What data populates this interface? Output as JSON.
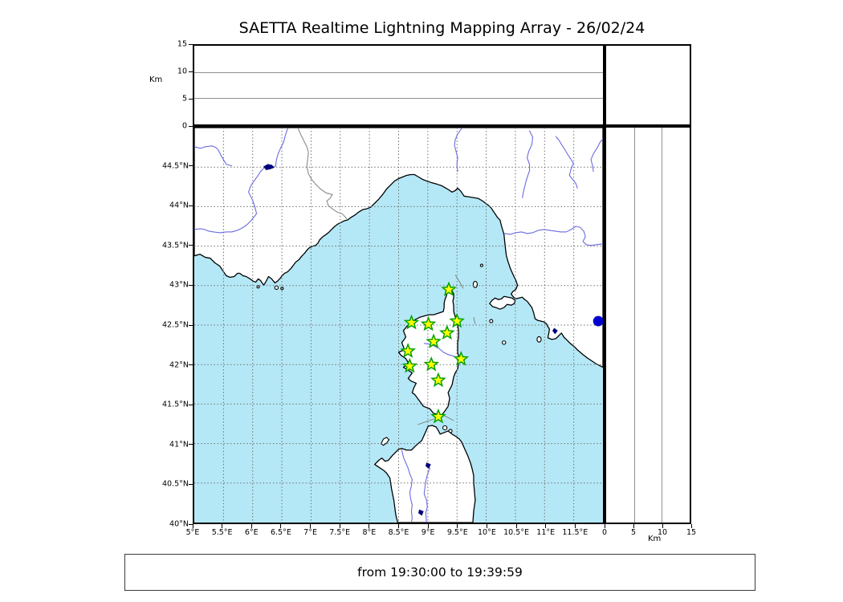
{
  "title": "SAETTA Realtime Lightning Mapping Array - 26/02/24",
  "footer": {
    "time_range": "from 19:30:00 to 19:39:59"
  },
  "axes": {
    "altitude": {
      "unit": "Km",
      "min": 0,
      "max": 15,
      "ticks": [
        {
          "v": 0,
          "label": "0"
        },
        {
          "v": 5,
          "label": "5"
        },
        {
          "v": 10,
          "label": "10"
        },
        {
          "v": 15,
          "label": "15"
        }
      ]
    },
    "longitude": {
      "min": 5,
      "max": 12,
      "ticks": [
        {
          "v": 5,
          "label": "5°E"
        },
        {
          "v": 5.5,
          "label": "5.5°E"
        },
        {
          "v": 6,
          "label": "6°E"
        },
        {
          "v": 6.5,
          "label": "6.5°E"
        },
        {
          "v": 7,
          "label": "7°E"
        },
        {
          "v": 7.5,
          "label": "7.5°E"
        },
        {
          "v": 8,
          "label": "8°E"
        },
        {
          "v": 8.5,
          "label": "8.5°E"
        },
        {
          "v": 9,
          "label": "9°E"
        },
        {
          "v": 9.5,
          "label": "9.5°E"
        },
        {
          "v": 10,
          "label": "10°E"
        },
        {
          "v": 10.5,
          "label": "10.5°E"
        },
        {
          "v": 11,
          "label": "11°E"
        },
        {
          "v": 11.5,
          "label": "11.5°E"
        }
      ]
    },
    "latitude": {
      "min": 40,
      "max": 45,
      "ticks": [
        {
          "v": 44.5,
          "label": "44.5°N"
        },
        {
          "v": 44,
          "label": "44°N"
        },
        {
          "v": 43.5,
          "label": "43.5°N"
        },
        {
          "v": 43,
          "label": "43°N"
        },
        {
          "v": 42.5,
          "label": "42.5°N"
        },
        {
          "v": 42,
          "label": "42°N"
        },
        {
          "v": 41.5,
          "label": "41.5°N"
        },
        {
          "v": 41,
          "label": "41°N"
        },
        {
          "v": 40.5,
          "label": "40.5°N"
        },
        {
          "v": 40,
          "label": "40°N"
        }
      ]
    }
  },
  "map_data": {
    "type": "map",
    "region": "Western Mediterranean: southern France, Ligurian/Tuscan Italy, Corsica, northern Sardinia",
    "grid_step_deg": 0.5,
    "stations": [
      {
        "lon": 9.36,
        "lat": 42.95
      },
      {
        "lon": 8.72,
        "lat": 42.53
      },
      {
        "lon": 9.01,
        "lat": 42.51
      },
      {
        "lon": 9.5,
        "lat": 42.55
      },
      {
        "lon": 9.33,
        "lat": 42.4
      },
      {
        "lon": 9.1,
        "lat": 42.29
      },
      {
        "lon": 8.66,
        "lat": 42.17
      },
      {
        "lon": 9.57,
        "lat": 42.07
      },
      {
        "lon": 8.69,
        "lat": 41.98
      },
      {
        "lon": 9.06,
        "lat": 42.0
      },
      {
        "lon": 9.18,
        "lat": 41.8
      },
      {
        "lon": 9.18,
        "lat": 41.34
      }
    ],
    "detections": [
      {
        "lon": 11.92,
        "lat": 42.55
      }
    ]
  },
  "colors": {
    "sea": "#b5e8f6",
    "land": "#ffffff",
    "coast": "#000000",
    "river": "#6b6be0",
    "grid": "#6e6e6e",
    "station_fill": "#ffff00",
    "station_edge": "#00a000",
    "detection": "#0000d0",
    "lake": "#000080"
  }
}
